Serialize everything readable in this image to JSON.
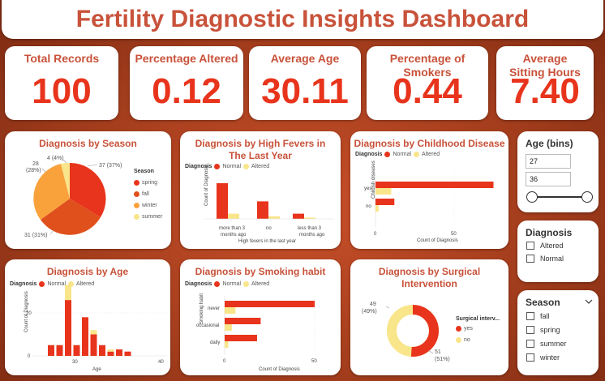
{
  "title": "Fertility Diagnostic Insights Dashboard",
  "colors": {
    "normal": "#e8341c",
    "altered": "#f9e58a",
    "spring": "#e8341c",
    "fall": "#e0501c",
    "winter": "#f9a23c",
    "summer": "#f9e58a",
    "accent": "#c8523a"
  },
  "kpis": [
    {
      "label": "Total Records",
      "value": "100"
    },
    {
      "label": "Percentage Altered",
      "value": "0.12"
    },
    {
      "label": "Average Age",
      "value": "30.11"
    },
    {
      "label": "Percentage of Smokers",
      "value": "0.44"
    },
    {
      "label": "Average Sitting Hours",
      "value": "7.40"
    }
  ],
  "season_chart": {
    "title": "Diagnosis by Season",
    "legend_title": "Season",
    "legend": [
      "spring",
      "fall",
      "winter",
      "summer"
    ],
    "labels": {
      "spring": "37 (37%)",
      "fall": "31 (31%)",
      "winter_count": "28",
      "winter_pct": "(28%)",
      "summer": "4 (4%)"
    }
  },
  "fever_chart": {
    "title": "Diagnosis by High Fevers in The Last Year",
    "legend_title": "Diagnosis",
    "normal": "Normal",
    "altered": "Altered",
    "ylabel": "Count of Diagnosis",
    "xlabel": "High fevers in the last year",
    "cat1a": "more than 3",
    "cat1b": "months ago",
    "cat2": "no",
    "cat3a": "less than 3",
    "cat3b": "months ago"
  },
  "childhood_chart": {
    "title": "Diagnosis by Childhood Disease",
    "legend_title": "Diagnosis",
    "normal": "Normal",
    "altered": "Altered",
    "ylabel": "Childish diseases",
    "xlabel": "Count of Diagnosis",
    "cat_yes": "yes",
    "cat_no": "no",
    "tick0": "0",
    "tick50": "50"
  },
  "age_chart": {
    "title": "Diagnosis by Age",
    "legend_title": "Diagnosis",
    "normal": "Normal",
    "altered": "Altered",
    "ylabel": "Count of Diagnosis",
    "xlabel": "Age",
    "y0": "0",
    "y20": "20",
    "x30": "30",
    "x40": "40"
  },
  "smoking_chart": {
    "title": "Diagnosis by Smoking habit",
    "legend_title": "Diagnosis",
    "normal": "Normal",
    "altered": "Altered",
    "ylabel": "Smoking habit",
    "xlabel": "Count of Diagnosis",
    "cat_never": "never",
    "cat_occ": "occasional",
    "cat_daily": "daily",
    "tick0": "0",
    "tick50": "50"
  },
  "surgical_chart": {
    "title": "Diagnosis by Surgical Intervention",
    "legend_title": "Surgical interv...",
    "yes": "yes",
    "no": "no",
    "no_label_count": "49",
    "no_label_pct": "(49%)",
    "yes_label_count": "51",
    "yes_label_pct": "(51%)"
  },
  "age_slicer": {
    "title": "Age (bins)",
    "min": "27",
    "max": "36"
  },
  "diagnosis_slicer": {
    "title": "Diagnosis",
    "options": [
      "Altered",
      "Normal"
    ]
  },
  "season_slicer": {
    "title": "Season",
    "options": [
      "fall",
      "spring",
      "summer",
      "winter"
    ]
  },
  "chart_data": [
    {
      "type": "pie",
      "title": "Diagnosis by Season",
      "categories": [
        "spring",
        "fall",
        "winter",
        "summer"
      ],
      "values": [
        37,
        31,
        28,
        4
      ]
    },
    {
      "type": "bar",
      "title": "Diagnosis by High Fevers in The Last Year",
      "categories": [
        "more than 3 months ago",
        "no",
        "less than 3 months ago"
      ],
      "series": [
        {
          "name": "Normal",
          "values": [
            55,
            27,
            8
          ]
        },
        {
          "name": "Altered",
          "values": [
            8,
            4,
            2
          ]
        }
      ],
      "ylim": [
        0,
        60
      ]
    },
    {
      "type": "bar",
      "title": "Diagnosis by Childhood Disease",
      "categories": [
        "yes",
        "no"
      ],
      "series": [
        {
          "name": "Normal",
          "values": [
            75,
            12
          ]
        },
        {
          "name": "Altered",
          "values": [
            10,
            2
          ]
        }
      ],
      "xlim": [
        0,
        80
      ]
    },
    {
      "type": "bar",
      "title": "Diagnosis by Age",
      "categories": [
        "27",
        "28",
        "29",
        "30",
        "31",
        "32",
        "33",
        "34",
        "35",
        "36"
      ],
      "series": [
        {
          "name": "Normal",
          "values": [
            5,
            5,
            26,
            5,
            18,
            10,
            5,
            2,
            3,
            2
          ]
        },
        {
          "name": "Altered",
          "values": [
            0,
            0,
            7,
            0,
            0,
            2,
            0,
            1,
            0,
            0
          ]
        }
      ],
      "xlim": [
        25,
        40
      ],
      "ylim": [
        0,
        30
      ]
    },
    {
      "type": "bar",
      "title": "Diagnosis by Smoking habit",
      "categories": [
        "never",
        "occasional",
        "daily"
      ],
      "series": [
        {
          "name": "Normal",
          "values": [
            50,
            20,
            18
          ]
        },
        {
          "name": "Altered",
          "values": [
            6,
            4,
            2
          ]
        }
      ],
      "xlim": [
        0,
        55
      ]
    },
    {
      "type": "pie",
      "title": "Diagnosis by Surgical Intervention",
      "categories": [
        "yes",
        "no"
      ],
      "values": [
        51,
        49
      ]
    }
  ]
}
